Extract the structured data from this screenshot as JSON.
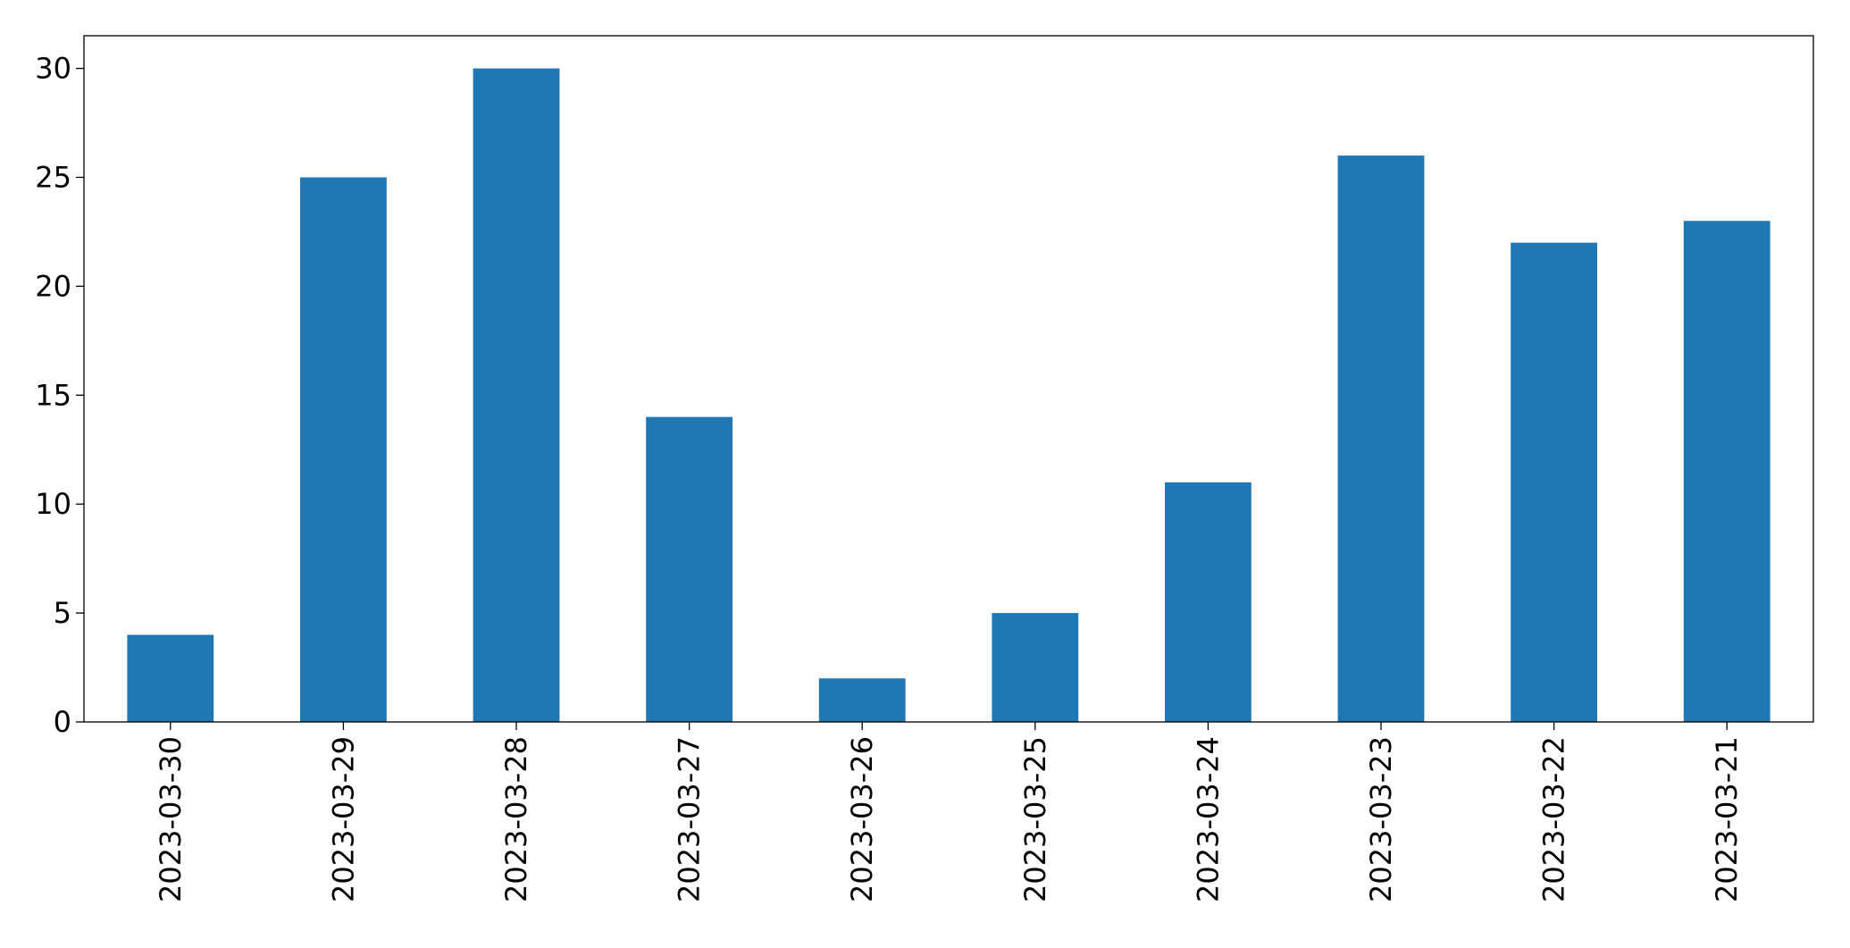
{
  "chart_data": {
    "type": "bar",
    "categories": [
      "2023-03-30",
      "2023-03-29",
      "2023-03-28",
      "2023-03-27",
      "2023-03-26",
      "2023-03-25",
      "2023-03-24",
      "2023-03-23",
      "2023-03-22",
      "2023-03-21"
    ],
    "values": [
      4,
      25,
      30,
      14,
      2,
      5,
      11,
      26,
      22,
      23
    ],
    "color": "#1f77b4",
    "ylim": [
      0,
      31.5
    ],
    "yticks": [
      0,
      5,
      10,
      15,
      20,
      25,
      30
    ],
    "grid": false
  }
}
